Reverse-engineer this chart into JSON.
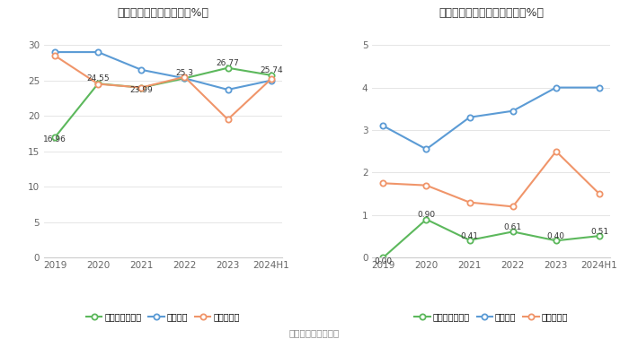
{
  "categories": [
    "2019",
    "2020",
    "2021",
    "2022",
    "2023",
    "2024H1"
  ],
  "left": {
    "title": "近年来资产负债率情况（%）",
    "ylim": [
      0,
      33
    ],
    "yticks": [
      0,
      5,
      10,
      15,
      20,
      25,
      30
    ],
    "company": [
      16.96,
      24.55,
      23.99,
      25.3,
      26.77,
      25.74
    ],
    "industry_mean": [
      29.0,
      29.0,
      26.5,
      25.3,
      23.7,
      25.0
    ],
    "industry_median": [
      28.5,
      24.5,
      24.0,
      25.5,
      19.5,
      25.2
    ],
    "company_labels": [
      "16.96",
      "24.55",
      "23.99",
      "25.3",
      "26.77",
      "25.74"
    ],
    "label_offsets_x": [
      0,
      0,
      0,
      0,
      0,
      0
    ],
    "label_offsets_y": [
      -1.5,
      0.8,
      -1.5,
      0.8,
      0.8,
      0.8
    ],
    "label_above": [
      false,
      true,
      false,
      true,
      true,
      true
    ]
  },
  "right": {
    "title": "近年来有息资产负债率情况（%）",
    "ylim": [
      0,
      5.5
    ],
    "yticks": [
      0,
      1,
      2,
      3,
      4,
      5
    ],
    "company": [
      0.0,
      0.9,
      0.41,
      0.61,
      0.4,
      0.51
    ],
    "industry_mean": [
      3.1,
      2.55,
      3.3,
      3.45,
      4.0,
      4.0
    ],
    "industry_median": [
      1.75,
      1.7,
      1.3,
      1.2,
      2.5,
      1.5
    ],
    "company_labels": [
      "0.00",
      "0.90",
      "0.41",
      "0.61",
      "0.40",
      "0.51"
    ],
    "label_offsets_x": [
      0,
      0,
      0,
      0,
      0,
      0
    ],
    "label_offsets_y": [
      -0.28,
      0.12,
      0.12,
      0.12,
      0.12,
      0.12
    ],
    "label_above": [
      false,
      true,
      true,
      true,
      true,
      true
    ]
  },
  "legend_left": [
    "公司资产负债率",
    "行业均值",
    "行业中位数"
  ],
  "legend_right": [
    "有息资产负债率",
    "行业均值",
    "行业中位数"
  ],
  "green_color": "#5cb85c",
  "blue_color": "#5b9bd5",
  "orange_color": "#f0956a",
  "footer": "数据来源：恒生聚源",
  "bg_color": "#ffffff"
}
